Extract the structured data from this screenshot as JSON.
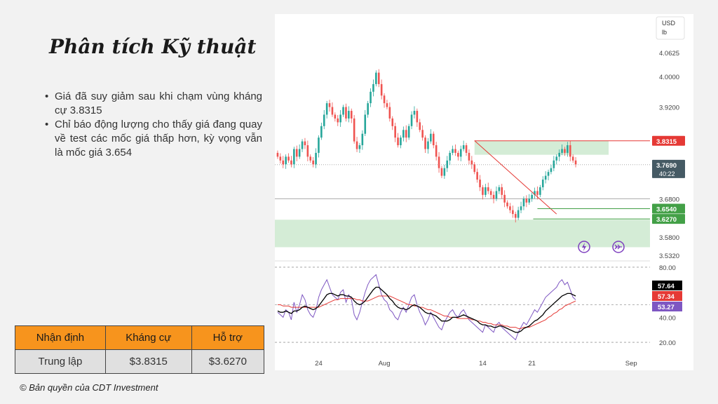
{
  "title": "Phân tích Kỹ thuật",
  "bullets": [
    "Giá đã suy giảm sau khi chạm vùng kháng cự 3.8315",
    "Chỉ báo động lượng cho thấy giá đang quay về test các mốc giá thấp hơn, kỳ vọng vẫn là mốc giá 3.654"
  ],
  "summary_table": {
    "headers": [
      "Nhận định",
      "Kháng cự",
      "Hỗ trợ"
    ],
    "row": [
      "Trung lập",
      "$3.8315",
      "$3.6270"
    ]
  },
  "copyright": "© Bản quyền của CDT Investment",
  "colors": {
    "background": "#f2f2f2",
    "table_header": "#f7941d",
    "up_candle": "#26a69a",
    "down_candle": "#ef5350",
    "resistance": "#e53935",
    "support": "#43a047",
    "zone": "#d4ecd6",
    "rsi_fast": "#7e57c2",
    "rsi_signal": "#e53935",
    "rsi_smooth": "#000000"
  },
  "chart_data": [
    {
      "type": "candlestick",
      "currency_label": [
        "USD",
        "lb"
      ],
      "y_ticks": [
        "4.0625",
        "4.0000",
        "3.9200",
        "3.6800",
        "3.5800",
        "3.5320"
      ],
      "x_ticks": [
        "24",
        "Aug",
        "14",
        "21",
        "Sep"
      ],
      "ylim": [
        3.53,
        4.09
      ],
      "price_labels": [
        {
          "value": 3.8315,
          "text": "3.8315",
          "kind": "resistance"
        },
        {
          "value": 3.769,
          "text": "3.7690",
          "sub": "40:22",
          "kind": "last"
        },
        {
          "value": 3.654,
          "text": "3.6540",
          "kind": "support"
        },
        {
          "value": 3.627,
          "text": "3.6270",
          "kind": "support"
        }
      ],
      "levels": {
        "resistance": 3.8315,
        "support_1": 3.654,
        "support_2": 3.627,
        "horizontal": 3.68,
        "last": 3.769
      },
      "zones": [
        {
          "name": "resistance-zone",
          "from": 3.795,
          "to": 3.8315
        },
        {
          "name": "support-zone",
          "from": 3.553,
          "to": 3.625
        }
      ],
      "trendline": {
        "from": {
          "bar": 72,
          "price": 3.832
        },
        "to": {
          "bar": 102,
          "price": 3.64
        }
      },
      "bars": 118,
      "candles": [
        [
          3.8,
          3.79
        ],
        [
          3.79,
          3.78
        ],
        [
          3.78,
          3.77
        ],
        [
          3.77,
          3.79
        ],
        [
          3.79,
          3.78
        ],
        [
          3.78,
          3.77
        ],
        [
          3.77,
          3.81
        ],
        [
          3.81,
          3.79
        ],
        [
          3.79,
          3.81
        ],
        [
          3.81,
          3.83
        ],
        [
          3.83,
          3.82
        ],
        [
          3.82,
          3.79
        ],
        [
          3.79,
          3.78
        ],
        [
          3.78,
          3.77
        ],
        [
          3.77,
          3.8
        ],
        [
          3.8,
          3.84
        ],
        [
          3.84,
          3.87
        ],
        [
          3.87,
          3.9
        ],
        [
          3.9,
          3.93
        ],
        [
          3.93,
          3.92
        ],
        [
          3.92,
          3.9
        ],
        [
          3.9,
          3.89
        ],
        [
          3.89,
          3.88
        ],
        [
          3.88,
          3.9
        ],
        [
          3.9,
          3.92
        ],
        [
          3.92,
          3.89
        ],
        [
          3.89,
          3.91
        ],
        [
          3.91,
          3.89
        ],
        [
          3.89,
          3.83
        ],
        [
          3.83,
          3.81
        ],
        [
          3.81,
          3.82
        ],
        [
          3.82,
          3.85
        ],
        [
          3.85,
          3.9
        ],
        [
          3.9,
          3.93
        ],
        [
          3.93,
          3.96
        ],
        [
          3.96,
          3.98
        ],
        [
          3.98,
          4.01
        ],
        [
          4.01,
          3.98
        ],
        [
          3.98,
          3.95
        ],
        [
          3.95,
          3.93
        ],
        [
          3.93,
          3.92
        ],
        [
          3.92,
          3.89
        ],
        [
          3.89,
          3.87
        ],
        [
          3.87,
          3.84
        ],
        [
          3.84,
          3.82
        ],
        [
          3.82,
          3.84
        ],
        [
          3.84,
          3.86
        ],
        [
          3.86,
          3.84
        ],
        [
          3.84,
          3.87
        ],
        [
          3.87,
          3.9
        ],
        [
          3.9,
          3.91
        ],
        [
          3.91,
          3.88
        ],
        [
          3.88,
          3.86
        ],
        [
          3.86,
          3.84
        ],
        [
          3.84,
          3.81
        ],
        [
          3.81,
          3.83
        ],
        [
          3.83,
          3.85
        ],
        [
          3.85,
          3.82
        ],
        [
          3.82,
          3.79
        ],
        [
          3.79,
          3.76
        ],
        [
          3.76,
          3.74
        ],
        [
          3.74,
          3.76
        ],
        [
          3.76,
          3.78
        ],
        [
          3.78,
          3.8
        ],
        [
          3.8,
          3.81
        ],
        [
          3.81,
          3.8
        ],
        [
          3.8,
          3.79
        ],
        [
          3.79,
          3.81
        ],
        [
          3.81,
          3.82
        ],
        [
          3.82,
          3.8
        ],
        [
          3.8,
          3.78
        ],
        [
          3.78,
          3.77
        ],
        [
          3.77,
          3.75
        ],
        [
          3.75,
          3.73
        ],
        [
          3.73,
          3.71
        ],
        [
          3.71,
          3.69
        ],
        [
          3.69,
          3.71
        ],
        [
          3.71,
          3.7
        ],
        [
          3.7,
          3.69
        ],
        [
          3.69,
          3.68
        ],
        [
          3.68,
          3.7
        ],
        [
          3.7,
          3.71
        ],
        [
          3.71,
          3.69
        ],
        [
          3.69,
          3.67
        ],
        [
          3.67,
          3.66
        ],
        [
          3.66,
          3.65
        ],
        [
          3.65,
          3.64
        ],
        [
          3.64,
          3.63
        ],
        [
          3.63,
          3.65
        ],
        [
          3.65,
          3.66
        ],
        [
          3.66,
          3.68
        ],
        [
          3.68,
          3.67
        ],
        [
          3.67,
          3.68
        ],
        [
          3.68,
          3.69
        ],
        [
          3.69,
          3.7
        ],
        [
          3.7,
          3.69
        ],
        [
          3.69,
          3.71
        ],
        [
          3.71,
          3.73
        ],
        [
          3.73,
          3.74
        ],
        [
          3.74,
          3.75
        ],
        [
          3.75,
          3.76
        ],
        [
          3.76,
          3.78
        ],
        [
          3.78,
          3.79
        ],
        [
          3.79,
          3.8
        ],
        [
          3.8,
          3.81
        ],
        [
          3.81,
          3.8
        ],
        [
          3.8,
          3.82
        ],
        [
          3.82,
          3.79
        ],
        [
          3.79,
          3.78
        ],
        [
          3.78,
          3.77
        ]
      ],
      "rsi": {
        "y_ticks": [
          "80.00",
          "40.00",
          "20.00"
        ],
        "ylim": [
          15,
          85
        ],
        "labels": [
          {
            "value": 57.64,
            "text": "57.64",
            "kind": "smooth"
          },
          {
            "value": 57.34,
            "text": "57.34",
            "kind": "signal"
          },
          {
            "value": 53.27,
            "text": "53.27",
            "kind": "fast"
          }
        ],
        "fast": [
          44,
          42,
          40,
          46,
          44,
          38,
          52,
          44,
          50,
          58,
          54,
          46,
          42,
          40,
          46,
          56,
          62,
          66,
          70,
          64,
          58,
          56,
          54,
          60,
          62,
          52,
          58,
          54,
          42,
          38,
          44,
          52,
          60,
          66,
          70,
          72,
          74,
          66,
          58,
          54,
          52,
          46,
          44,
          40,
          38,
          44,
          48,
          44,
          50,
          56,
          58,
          50,
          44,
          40,
          34,
          38,
          44,
          40,
          36,
          32,
          30,
          36,
          40,
          44,
          46,
          42,
          40,
          44,
          46,
          42,
          38,
          36,
          34,
          32,
          30,
          28,
          34,
          32,
          30,
          28,
          34,
          36,
          32,
          30,
          28,
          26,
          24,
          22,
          28,
          32,
          36,
          34,
          38,
          42,
          46,
          44,
          48,
          52,
          56,
          58,
          60,
          62,
          64,
          68,
          70,
          66,
          68,
          62,
          56,
          54
        ],
        "smooth": [
          45,
          44,
          44,
          45,
          44,
          43,
          45,
          45,
          46,
          48,
          49,
          48,
          47,
          46,
          47,
          49,
          52,
          55,
          58,
          59,
          59,
          58,
          57,
          58,
          58,
          57,
          57,
          56,
          53,
          51,
          50,
          51,
          53,
          56,
          59,
          62,
          64,
          64,
          62,
          60,
          58,
          55,
          53,
          50,
          48,
          47,
          47,
          46,
          47,
          49,
          50,
          49,
          48,
          46,
          44,
          43,
          43,
          42,
          41,
          39,
          37,
          37,
          37,
          38,
          40,
          40,
          40,
          41,
          42,
          41,
          40,
          39,
          38,
          37,
          35,
          34,
          34,
          33,
          33,
          32,
          32,
          33,
          33,
          32,
          31,
          30,
          29,
          28,
          28,
          29,
          31,
          32,
          33,
          35,
          37,
          38,
          40,
          42,
          45,
          47,
          49,
          51,
          53,
          55,
          57,
          58,
          59,
          59,
          58,
          57
        ],
        "signal": [
          50,
          50,
          49,
          49,
          49,
          48,
          48,
          48,
          48,
          48,
          48,
          48,
          48,
          48,
          48,
          48,
          49,
          50,
          51,
          52,
          53,
          54,
          54,
          55,
          55,
          55,
          55,
          55,
          55,
          54,
          54,
          53,
          53,
          53,
          54,
          55,
          56,
          57,
          57,
          57,
          57,
          57,
          56,
          55,
          54,
          53,
          52,
          51,
          50,
          50,
          49,
          49,
          48,
          48,
          47,
          46,
          46,
          45,
          44,
          43,
          42,
          41,
          41,
          40,
          40,
          40,
          39,
          39,
          39,
          39,
          39,
          38,
          38,
          37,
          37,
          36,
          36,
          35,
          35,
          34,
          34,
          34,
          34,
          33,
          33,
          32,
          32,
          32,
          31,
          31,
          32,
          32,
          32,
          33,
          34,
          35,
          36,
          37,
          38,
          40,
          41,
          43,
          44,
          46,
          47,
          49,
          50,
          51,
          52,
          53
        ]
      }
    }
  ]
}
